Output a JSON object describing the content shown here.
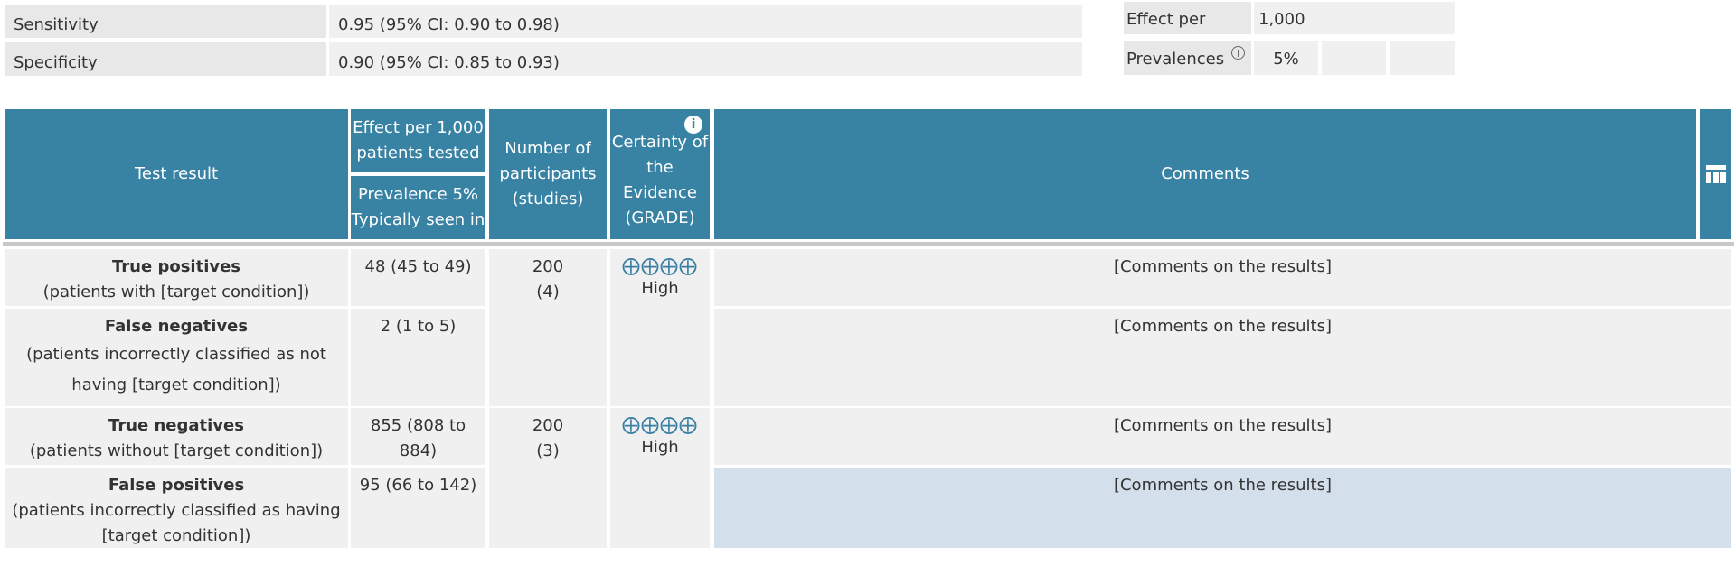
{
  "params": {
    "sensitivity_label": "Sensitivity",
    "sensitivity_value": "0.95 (95% CI: 0.90 to 0.98)",
    "specificity_label": "Specificity",
    "specificity_value": "0.90 (95% CI: 0.85 to 0.93)",
    "effect_per_label": "Effect per",
    "effect_per_value": "1,000",
    "prevalences_label": "Prevalences",
    "prevalence_1": "5%",
    "prevalence_2": "",
    "prevalence_3": ""
  },
  "header": {
    "test_result": "Test result",
    "effect_line1": "Effect per 1,000",
    "effect_line2": "patients tested",
    "prev_line1": "Prevalence 5%",
    "prev_line2": "Typically seen in",
    "participants_line1": "Number of",
    "participants_line2": "participants",
    "participants_line3": "(studies)",
    "certainty_line1": "Certainty of",
    "certainty_line2": "the Evidence",
    "certainty_line3": "(GRADE)",
    "comments": "Comments"
  },
  "rows": [
    {
      "title": "True positives",
      "desc_line1": "(patients with [target condition])",
      "desc_line2": "",
      "effect": "48 (45 to 49)",
      "comments": "[Comments on the results]"
    },
    {
      "title": "False negatives",
      "desc_line1": "(patients incorrectly classified as not",
      "desc_line2": "having [target condition])",
      "effect": "2 (1 to 5)",
      "comments": "[Comments on the results]"
    },
    {
      "title": "True negatives",
      "desc_line1": "(patients without [target condition])",
      "desc_line2": "",
      "effect": "855 (808 to 884)",
      "comments": "[Comments on the results]"
    },
    {
      "title": "False positives",
      "desc_line1": "(patients incorrectly classified as having",
      "desc_line2": "[target condition])",
      "effect": "95 (66 to 142)",
      "comments": "[Comments on the results]"
    }
  ],
  "groups": [
    {
      "participants": "200",
      "studies": "(4)",
      "grade_symbols": "⨁⨁⨁⨁",
      "grade_label": "High"
    },
    {
      "participants": "200",
      "studies": "(3)",
      "grade_symbols": "⨁⨁⨁⨁",
      "grade_label": "High"
    }
  ],
  "icons": {
    "info_header": "i",
    "info_prevalence": "i",
    "columns": "columns-icon"
  },
  "colors": {
    "header": "#3882a4",
    "cell": "#f0f0f0",
    "selected_cell": "#d3e0ec",
    "grade": "#3a7fa3"
  }
}
